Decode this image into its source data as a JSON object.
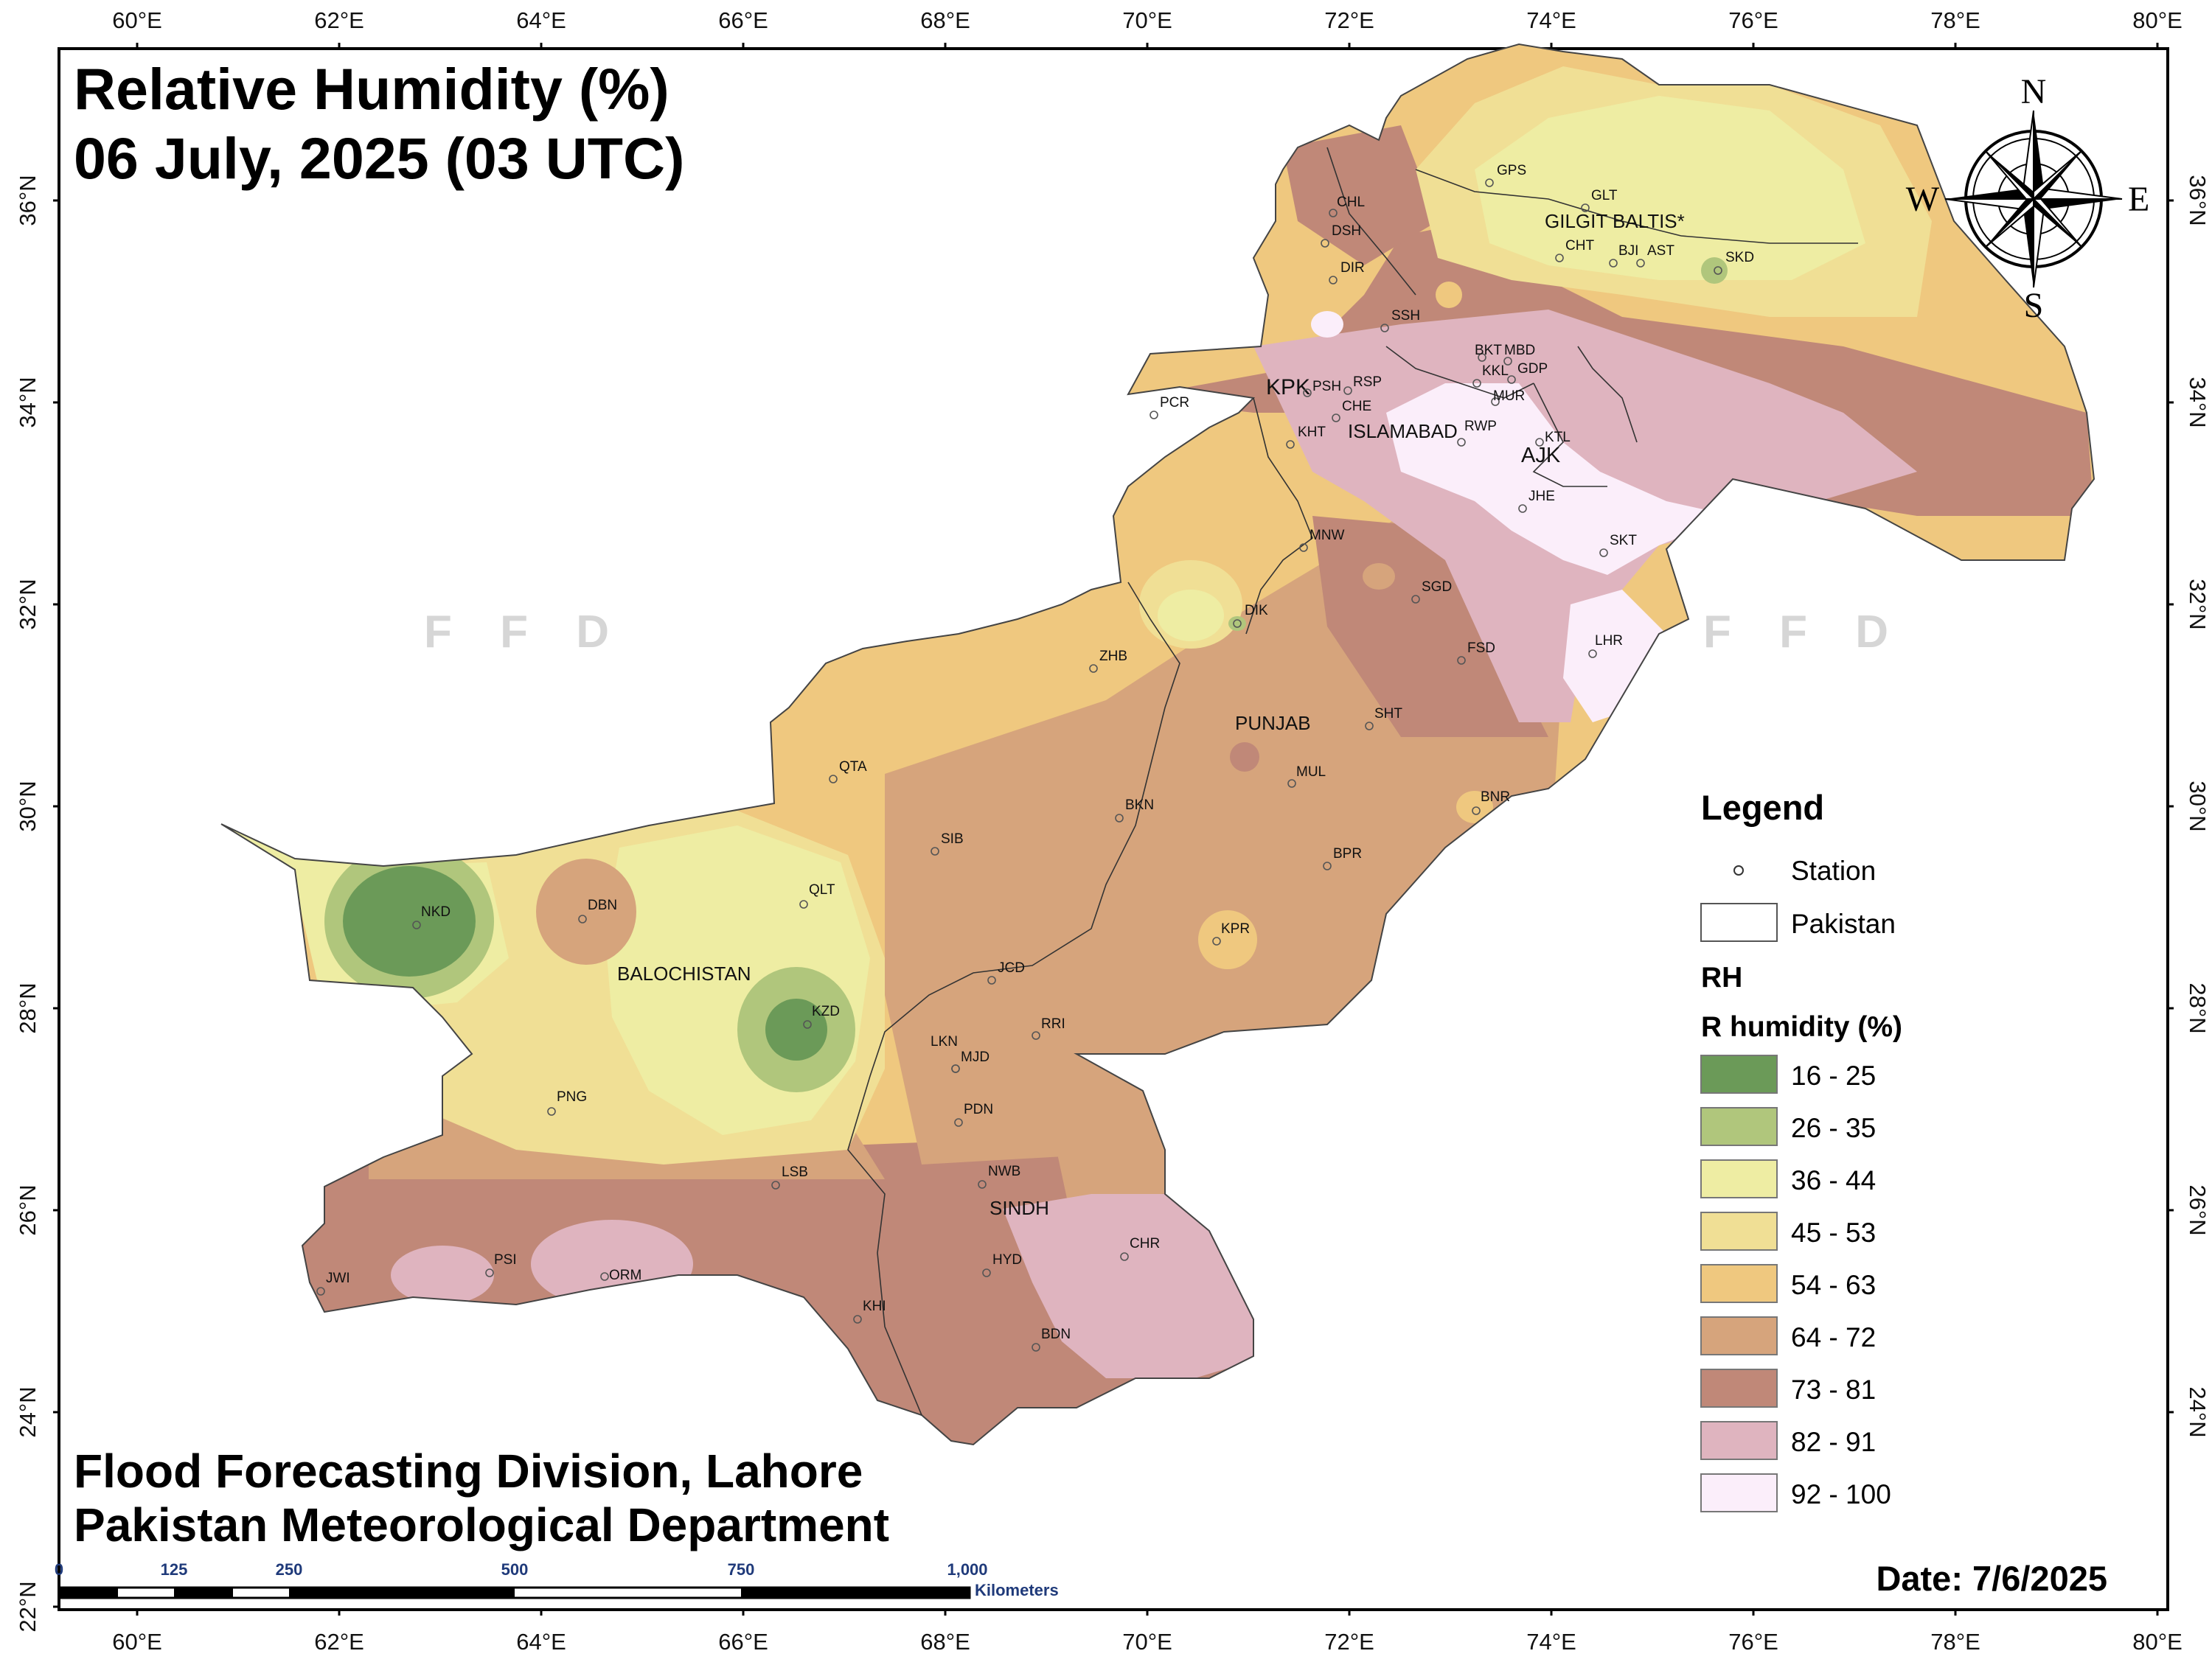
{
  "title_line1": "Relative Humidity (%)",
  "title_line2": "06 July, 2025 (03 UTC)",
  "credit_line1": "Flood Forecasting Division, Lahore",
  "credit_line2": "Pakistan Meteorological Department",
  "date_label": "Date: 7/6/2025",
  "watermark": "F F D",
  "x_ticks": [
    "60°E",
    "62°E",
    "64°E",
    "66°E",
    "68°E",
    "70°E",
    "72°E",
    "74°E",
    "76°E",
    "78°E",
    "80°E"
  ],
  "y_ticks": [
    "36°N",
    "34°N",
    "32°N",
    "30°N",
    "28°N",
    "26°N",
    "24°N",
    "22°N"
  ],
  "compass": {
    "n": "N",
    "s": "S",
    "e": "E",
    "w": "W"
  },
  "legend": {
    "title": "Legend",
    "station_label": "Station",
    "pakistan_label": "Pakistan",
    "rh_label": "RH",
    "rh_sub": "R humidity (%)",
    "classes": [
      {
        "label": "16 - 25",
        "color": "#6b9a58"
      },
      {
        "label": "26 - 35",
        "color": "#b0c67c"
      },
      {
        "label": "36 - 44",
        "color": "#eeeda3"
      },
      {
        "label": "45 - 53",
        "color": "#f0df95"
      },
      {
        "label": "54 - 63",
        "color": "#efc87f"
      },
      {
        "label": "64 - 72",
        "color": "#d6a47c"
      },
      {
        "label": "73 - 81",
        "color": "#c08878"
      },
      {
        "label": "82 - 91",
        "color": "#dfb4bf"
      },
      {
        "label": "92 - 100",
        "color": "#fbeefa"
      }
    ]
  },
  "scale_bar": {
    "ticks": [
      "0",
      "125",
      "250",
      "500",
      "750",
      "1,000"
    ],
    "unit": "Kilometers"
  },
  "regions": [
    "GILGIT BALTIS*",
    "KPK",
    "ISLAMABAD",
    "AJK",
    "PUNJAB",
    "BALOCHISTAN",
    "SINDH"
  ],
  "stations": [
    "GPS",
    "GLT",
    "CHT",
    "BJI",
    "AST",
    "SKD",
    "CHL",
    "DSH",
    "DIR",
    "SSH",
    "BKT",
    "MBD",
    "KKL",
    "GDP",
    "MUR",
    "PSH",
    "RSP",
    "CHE",
    "RWP",
    "KTL",
    "KHT",
    "PCR",
    "JHE",
    "SKT",
    "MNW",
    "SGD",
    "DIK",
    "ZHB",
    "FSD",
    "LHR",
    "SHT",
    "MUL",
    "QTA",
    "BKN",
    "BNR",
    "SIB",
    "BPR",
    "QLT",
    "DBN",
    "NKD",
    "KPR",
    "JCD",
    "KZD",
    "RRI",
    "LKN",
    "MJD",
    "PNG",
    "PDN",
    "LSB",
    "NWB",
    "CHR",
    "HYD",
    "PSI",
    "ORM",
    "JWI",
    "KHI",
    "BDN"
  ]
}
